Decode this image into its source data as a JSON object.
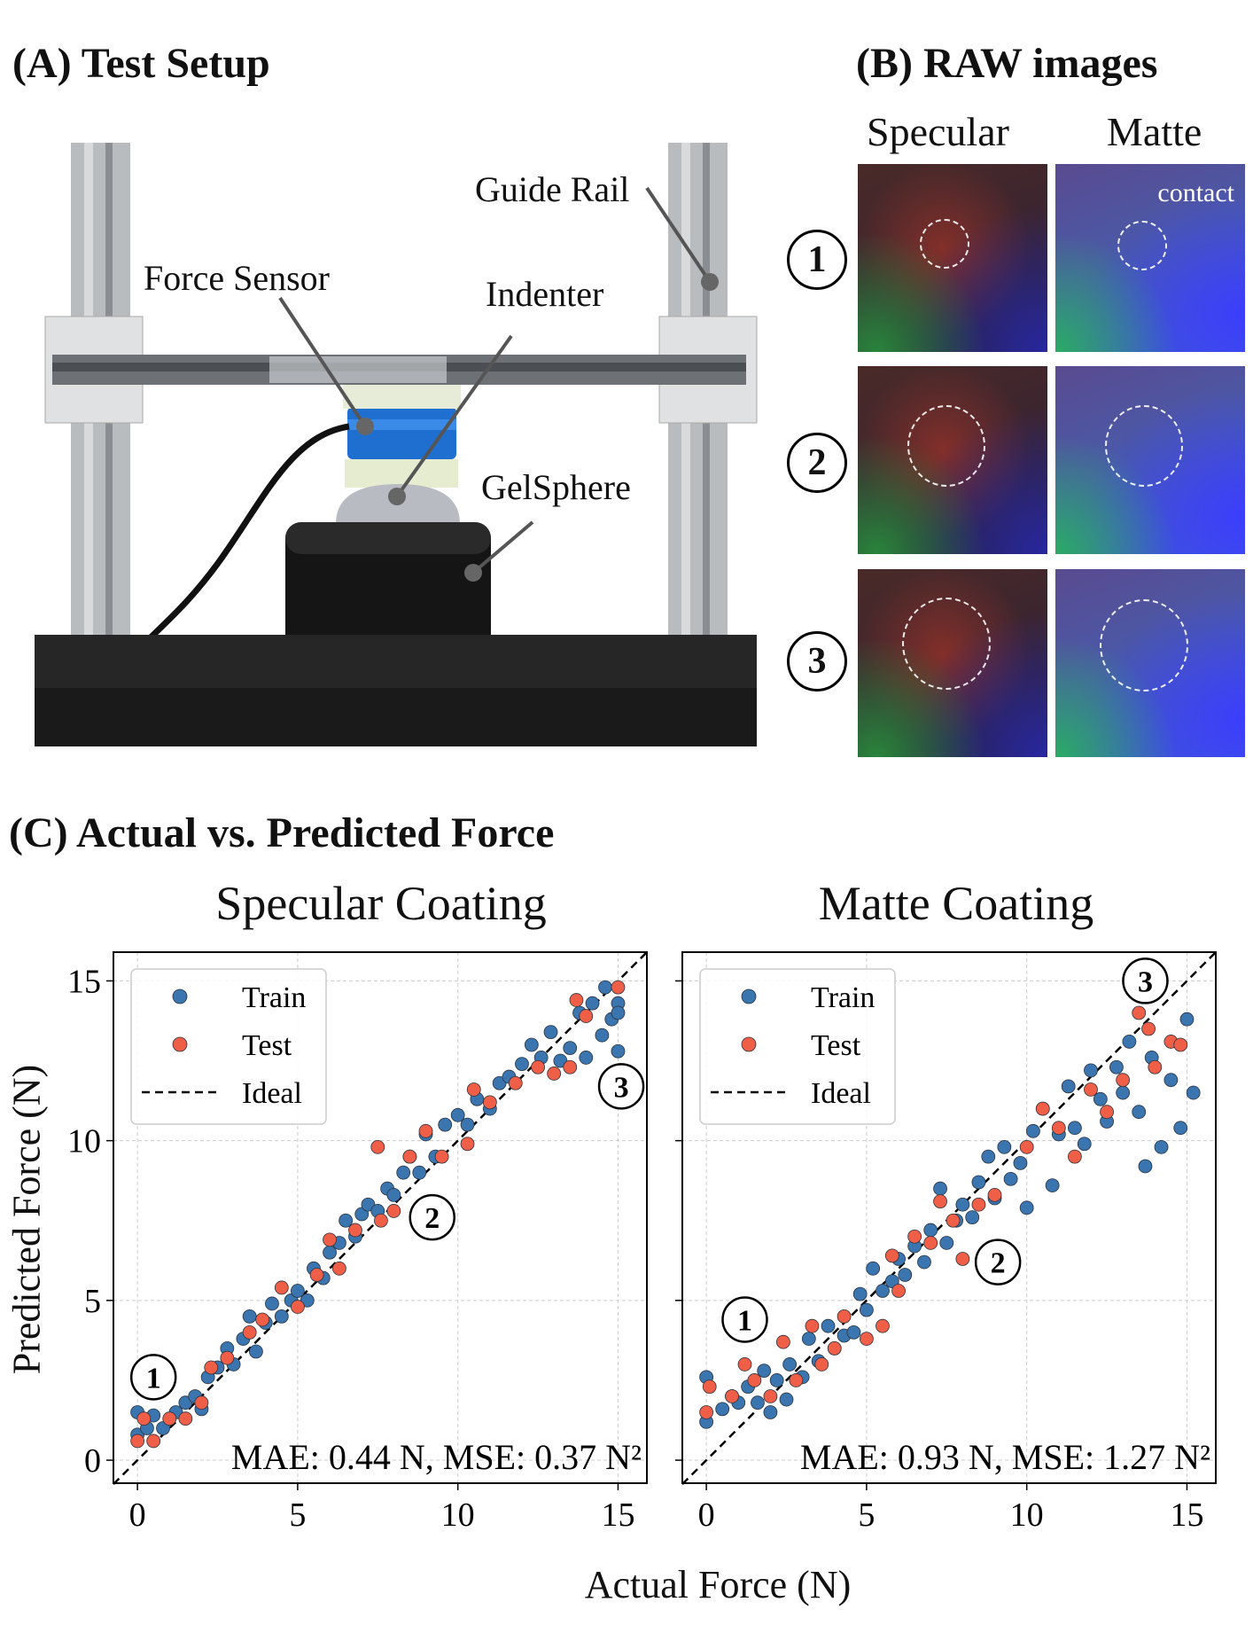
{
  "panel_a": {
    "title": "(A) Test Setup",
    "labels": {
      "guide_rail": "Guide Rail",
      "force_sensor": "Force Sensor",
      "indenter": "Indenter",
      "gelsphere": "GelSphere"
    }
  },
  "panel_b": {
    "title": "(B) RAW images",
    "columns": [
      "Specular",
      "Matte"
    ],
    "rows": [
      "1",
      "2",
      "3"
    ],
    "contact_label": "contact"
  },
  "panel_c": {
    "title": "(C) Actual vs. Predicted Force",
    "xlabel": "Actual Force (N)",
    "ylabel": "Predicted Force (N)"
  },
  "colors": {
    "train": "#3b75af",
    "test": "#ef5f47",
    "ideal": "#000000"
  },
  "chart_data": [
    {
      "type": "scatter",
      "title": "Specular Coating",
      "xlim": [
        -0.75,
        15.9
      ],
      "ylim": [
        -0.72,
        15.9
      ],
      "xticks": [
        "0",
        "5",
        "10",
        "15"
      ],
      "yticks": [
        "0",
        "5",
        "10",
        "15"
      ],
      "grid": true,
      "legend_position": "top-left",
      "legend": [
        "Train",
        "Test",
        "Ideal"
      ],
      "metrics": "MAE: 0.44 N, MSE: 0.37 N²",
      "annotations": [
        {
          "label": "1",
          "x": 0.5,
          "y": 2.6
        },
        {
          "label": "2",
          "x": 9.2,
          "y": 7.6
        },
        {
          "label": "3",
          "x": 15.1,
          "y": 11.7
        }
      ],
      "series": [
        {
          "name": "Train",
          "points": [
            [
              0,
              0.8
            ],
            [
              0,
              1.5
            ],
            [
              0.3,
              1.0
            ],
            [
              0.5,
              1.4
            ],
            [
              0.8,
              1.0
            ],
            [
              1.2,
              1.5
            ],
            [
              1.5,
              1.8
            ],
            [
              1.8,
              2.0
            ],
            [
              2.0,
              1.6
            ],
            [
              2.2,
              2.6
            ],
            [
              2.5,
              2.9
            ],
            [
              2.8,
              3.5
            ],
            [
              3.0,
              3.0
            ],
            [
              3.3,
              3.8
            ],
            [
              3.5,
              4.5
            ],
            [
              3.7,
              3.4
            ],
            [
              4.0,
              4.3
            ],
            [
              4.2,
              4.9
            ],
            [
              4.5,
              4.5
            ],
            [
              4.8,
              5.0
            ],
            [
              5.0,
              5.3
            ],
            [
              5.3,
              5.0
            ],
            [
              5.5,
              6.0
            ],
            [
              5.8,
              5.7
            ],
            [
              6.0,
              6.5
            ],
            [
              6.3,
              6.8
            ],
            [
              6.5,
              7.5
            ],
            [
              6.8,
              7.0
            ],
            [
              7.0,
              7.7
            ],
            [
              7.2,
              8.0
            ],
            [
              7.5,
              7.8
            ],
            [
              7.8,
              8.5
            ],
            [
              8.0,
              8.3
            ],
            [
              8.3,
              9.0
            ],
            [
              8.5,
              9.5
            ],
            [
              8.8,
              9.0
            ],
            [
              9.0,
              10.2
            ],
            [
              9.3,
              9.5
            ],
            [
              9.6,
              10.5
            ],
            [
              10.0,
              10.8
            ],
            [
              10.3,
              10.5
            ],
            [
              10.6,
              11.3
            ],
            [
              11.0,
              11.0
            ],
            [
              11.3,
              11.8
            ],
            [
              11.6,
              12.0
            ],
            [
              12.0,
              12.4
            ],
            [
              12.3,
              13.0
            ],
            [
              12.6,
              12.6
            ],
            [
              12.9,
              13.4
            ],
            [
              13.2,
              12.5
            ],
            [
              13.5,
              12.9
            ],
            [
              13.8,
              14.0
            ],
            [
              14.0,
              12.6
            ],
            [
              14.2,
              14.3
            ],
            [
              14.5,
              13.3
            ],
            [
              14.6,
              14.8
            ],
            [
              14.8,
              13.8
            ],
            [
              15.0,
              14.3
            ],
            [
              15.0,
              12.8
            ],
            [
              15.0,
              14.0
            ]
          ]
        },
        {
          "name": "Test",
          "points": [
            [
              0,
              0.6
            ],
            [
              0.2,
              1.3
            ],
            [
              0.5,
              0.6
            ],
            [
              1.0,
              1.3
            ],
            [
              1.5,
              1.3
            ],
            [
              2.0,
              1.8
            ],
            [
              2.3,
              2.9
            ],
            [
              2.8,
              3.2
            ],
            [
              3.5,
              4.0
            ],
            [
              3.9,
              4.4
            ],
            [
              4.5,
              5.4
            ],
            [
              5.0,
              4.8
            ],
            [
              5.6,
              5.8
            ],
            [
              6.0,
              6.9
            ],
            [
              6.3,
              6.0
            ],
            [
              6.8,
              7.2
            ],
            [
              7.5,
              9.8
            ],
            [
              7.6,
              7.5
            ],
            [
              8.0,
              7.8
            ],
            [
              8.5,
              9.5
            ],
            [
              9.0,
              10.3
            ],
            [
              9.5,
              9.5
            ],
            [
              10.3,
              9.9
            ],
            [
              10.5,
              11.6
            ],
            [
              11.0,
              11.2
            ],
            [
              11.8,
              11.8
            ],
            [
              12.5,
              12.3
            ],
            [
              13.0,
              12.1
            ],
            [
              13.5,
              12.3
            ],
            [
              13.7,
              14.4
            ],
            [
              14.0,
              13.9
            ],
            [
              15.0,
              14.8
            ]
          ]
        }
      ]
    },
    {
      "type": "scatter",
      "title": "Matte Coating",
      "xlim": [
        -0.75,
        15.9
      ],
      "ylim": [
        -0.72,
        15.9
      ],
      "xticks": [
        "0",
        "5",
        "10",
        "15"
      ],
      "yticks": [],
      "grid": true,
      "legend_position": "top-left",
      "legend": [
        "Train",
        "Test",
        "Ideal"
      ],
      "metrics": "MAE: 0.93 N, MSE: 1.27 N²",
      "annotations": [
        {
          "label": "1",
          "x": 1.2,
          "y": 4.4
        },
        {
          "label": "2",
          "x": 9.1,
          "y": 6.2
        },
        {
          "label": "3",
          "x": 13.7,
          "y": 15.0
        }
      ],
      "series": [
        {
          "name": "Train",
          "points": [
            [
              0,
              1.2
            ],
            [
              0,
              2.6
            ],
            [
              0.5,
              1.6
            ],
            [
              0.8,
              2.0
            ],
            [
              1.0,
              1.8
            ],
            [
              1.3,
              2.3
            ],
            [
              1.6,
              1.8
            ],
            [
              1.8,
              2.8
            ],
            [
              2.0,
              1.5
            ],
            [
              2.2,
              2.5
            ],
            [
              2.5,
              1.9
            ],
            [
              2.6,
              3.0
            ],
            [
              3.0,
              2.6
            ],
            [
              3.2,
              3.8
            ],
            [
              3.5,
              3.1
            ],
            [
              3.8,
              4.2
            ],
            [
              4.0,
              3.5
            ],
            [
              4.3,
              3.9
            ],
            [
              4.6,
              4.0
            ],
            [
              4.8,
              5.2
            ],
            [
              5.0,
              4.7
            ],
            [
              5.2,
              6.0
            ],
            [
              5.5,
              5.3
            ],
            [
              5.8,
              5.6
            ],
            [
              6.0,
              6.3
            ],
            [
              6.2,
              5.8
            ],
            [
              6.5,
              6.7
            ],
            [
              6.8,
              6.2
            ],
            [
              7.0,
              7.2
            ],
            [
              7.3,
              8.5
            ],
            [
              7.5,
              6.8
            ],
            [
              7.8,
              7.5
            ],
            [
              8.0,
              8.0
            ],
            [
              8.3,
              7.6
            ],
            [
              8.5,
              8.7
            ],
            [
              8.8,
              9.5
            ],
            [
              9.0,
              8.2
            ],
            [
              9.3,
              9.8
            ],
            [
              9.5,
              8.8
            ],
            [
              9.8,
              9.3
            ],
            [
              10.0,
              7.9
            ],
            [
              10.2,
              10.3
            ],
            [
              10.5,
              11.0
            ],
            [
              10.8,
              8.6
            ],
            [
              11.0,
              10.2
            ],
            [
              11.3,
              11.7
            ],
            [
              11.5,
              10.4
            ],
            [
              11.8,
              9.9
            ],
            [
              12.0,
              12.2
            ],
            [
              12.3,
              11.3
            ],
            [
              12.5,
              10.6
            ],
            [
              12.8,
              12.3
            ],
            [
              13.0,
              11.5
            ],
            [
              13.2,
              13.1
            ],
            [
              13.5,
              10.9
            ],
            [
              13.7,
              9.2
            ],
            [
              13.9,
              12.6
            ],
            [
              14.2,
              9.8
            ],
            [
              14.5,
              11.9
            ],
            [
              14.8,
              10.4
            ],
            [
              15.0,
              13.8
            ],
            [
              15.2,
              11.5
            ]
          ]
        },
        {
          "name": "Test",
          "points": [
            [
              0,
              1.5
            ],
            [
              0.1,
              2.3
            ],
            [
              0.8,
              2.0
            ],
            [
              1.2,
              3.0
            ],
            [
              1.5,
              2.5
            ],
            [
              2.0,
              2.0
            ],
            [
              2.4,
              3.7
            ],
            [
              2.8,
              2.5
            ],
            [
              3.3,
              4.2
            ],
            [
              3.6,
              3.0
            ],
            [
              4.0,
              3.5
            ],
            [
              4.3,
              4.5
            ],
            [
              5.0,
              3.8
            ],
            [
              5.5,
              4.2
            ],
            [
              5.8,
              6.4
            ],
            [
              6.0,
              5.3
            ],
            [
              6.5,
              7.0
            ],
            [
              7.0,
              6.8
            ],
            [
              7.3,
              8.1
            ],
            [
              7.7,
              7.5
            ],
            [
              8.0,
              6.3
            ],
            [
              8.5,
              8.0
            ],
            [
              9.0,
              8.3
            ],
            [
              10.0,
              9.8
            ],
            [
              10.5,
              11.0
            ],
            [
              11.0,
              10.4
            ],
            [
              11.5,
              9.5
            ],
            [
              12.0,
              11.6
            ],
            [
              12.5,
              10.9
            ],
            [
              13.0,
              11.9
            ],
            [
              13.5,
              14.0
            ],
            [
              13.8,
              13.5
            ],
            [
              14.0,
              12.3
            ],
            [
              14.5,
              13.1
            ],
            [
              14.8,
              13.0
            ]
          ]
        }
      ]
    }
  ]
}
